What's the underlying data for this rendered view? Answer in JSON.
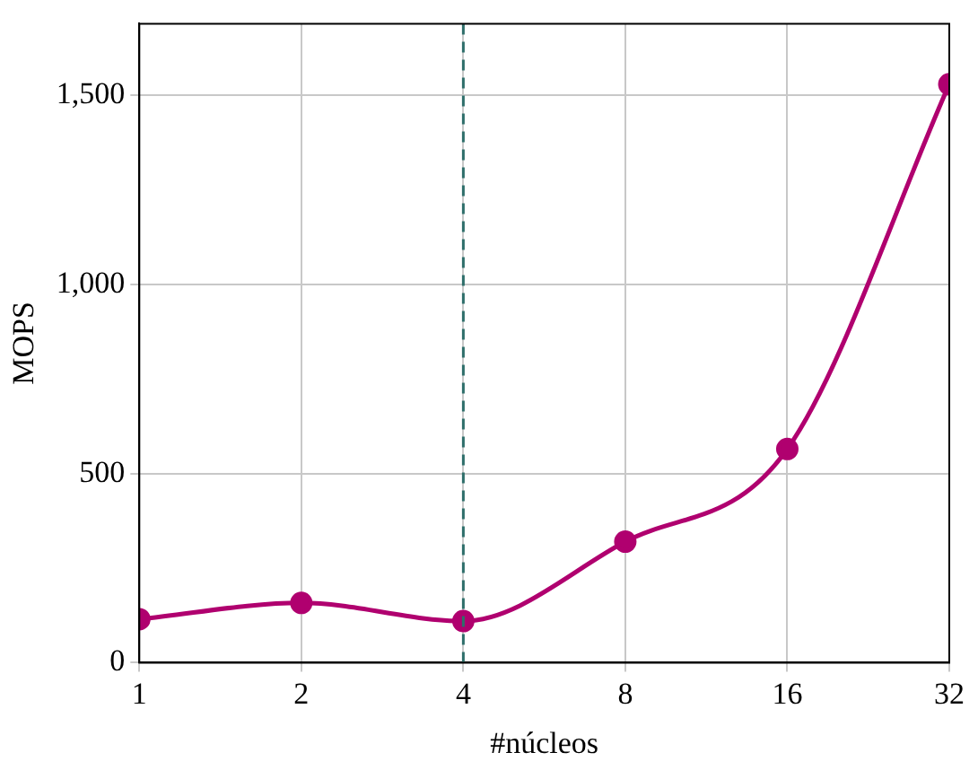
{
  "chart_data": {
    "type": "line",
    "xlabel": "#núcleos",
    "ylabel": "MOPS",
    "x": [
      1,
      2,
      4,
      8,
      16,
      32
    ],
    "series": [
      {
        "color": "#b0006f",
        "values": [
          115,
          158,
          110,
          320,
          565,
          1530
        ]
      }
    ],
    "log": "x",
    "xlim": [
      1,
      32
    ],
    "xticks": [
      1,
      2,
      4,
      8,
      16,
      32
    ],
    "ylim": [
      0,
      1690
    ],
    "yticks": [
      0,
      500,
      {
        "value": 1000,
        "label": "1,000"
      },
      {
        "value": 1500,
        "label": "1,500"
      }
    ],
    "ref_lines": [
      {
        "axis": "x",
        "value": 4,
        "color": "#2e6e6a",
        "line_style": "dashed"
      }
    ],
    "grid": true,
    "legend": false,
    "marker": "circle",
    "line_style": "solid"
  }
}
